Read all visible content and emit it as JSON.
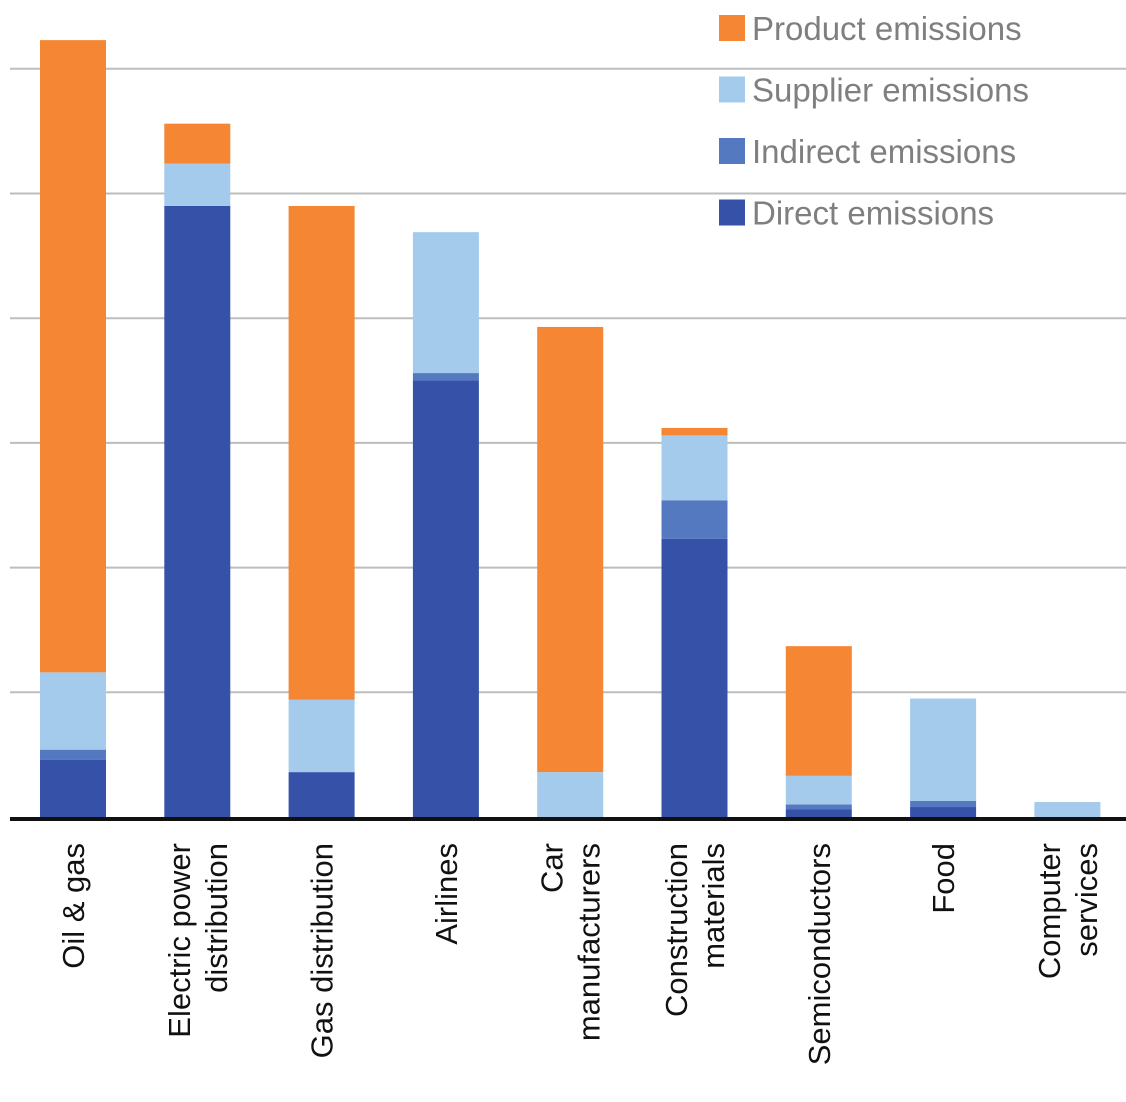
{
  "chart_data": {
    "type": "bar",
    "stacked": true,
    "orientation": "vertical",
    "categories": [
      "Oil & gas",
      "Electric power distribution",
      "Gas distribution",
      "Airlines",
      "Car manufacturers",
      "Construction materials",
      "Semiconductors",
      "Food",
      "Computer services"
    ],
    "category_label_lines": [
      [
        "Oil & gas"
      ],
      [
        "Electric power",
        "distribution"
      ],
      [
        "Gas distribution"
      ],
      [
        "Airlines"
      ],
      [
        "Car",
        "manufacturers"
      ],
      [
        "Construction",
        "materials"
      ],
      [
        "Semiconductors"
      ],
      [
        "Food"
      ],
      [
        "Computer",
        "services"
      ]
    ],
    "series": [
      {
        "name": "Direct emissions",
        "color": "#3652a8",
        "values": [
          0.46,
          4.9,
          0.36,
          3.5,
          0.0,
          2.23,
          0.06,
          0.08,
          0.0
        ]
      },
      {
        "name": "Indirect emissions",
        "color": "#5579c1",
        "values": [
          0.08,
          0.0,
          0.0,
          0.06,
          0.0,
          0.31,
          0.04,
          0.05,
          0.0
        ]
      },
      {
        "name": "Supplier emissions",
        "color": "#a4cbec",
        "values": [
          0.62,
          0.34,
          0.58,
          1.13,
          0.36,
          0.52,
          0.23,
          0.82,
          0.12
        ]
      },
      {
        "name": "Product emissions",
        "color": "#f58634",
        "values": [
          5.07,
          0.32,
          3.96,
          0.0,
          3.57,
          0.06,
          1.04,
          0.0,
          0.0
        ]
      }
    ],
    "legend_order": [
      "Product emissions",
      "Supplier emissions",
      "Indirect emissions",
      "Direct emissions"
    ],
    "legend_position": "top-right",
    "ylim": [
      0,
      6.4
    ],
    "y_gridlines": [
      1,
      2,
      3,
      4,
      5,
      6
    ],
    "y_tick_labels": false,
    "grid": true,
    "title": "",
    "xlabel": "",
    "ylabel": ""
  }
}
